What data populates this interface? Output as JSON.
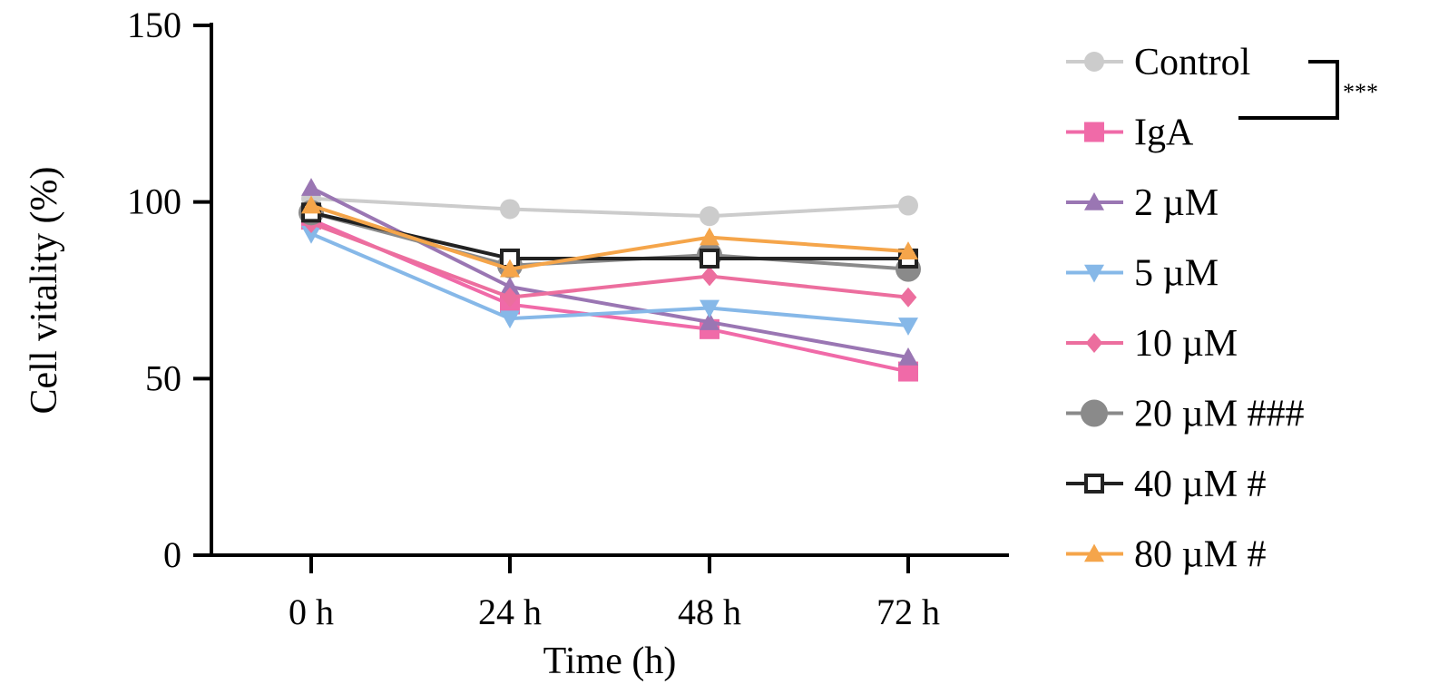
{
  "chart_data": {
    "type": "line",
    "xlabel": "Time (h)",
    "ylabel": "Cell vitality (%)",
    "ylim": [
      0,
      150
    ],
    "yticks": [
      0,
      50,
      100,
      150
    ],
    "categories": [
      "0 h",
      "24 h",
      "48 h",
      "72 h"
    ],
    "grid": false,
    "legend_position": "right",
    "series": [
      {
        "name": "Control",
        "color": "#cccccc",
        "marker": "circle",
        "values": [
          101,
          98,
          96,
          99
        ]
      },
      {
        "name": "IgA",
        "color": "#f06aa8",
        "marker": "square",
        "values": [
          95,
          71,
          64,
          52
        ]
      },
      {
        "name": "2 µM",
        "color": "#9a76b3",
        "marker": "triangle-up",
        "values": [
          104,
          76,
          66,
          56
        ]
      },
      {
        "name": "5 µM",
        "color": "#86b8e8",
        "marker": "triangle-down",
        "values": [
          91,
          67,
          70,
          65
        ]
      },
      {
        "name": "10 µM",
        "color": "#ec6e9e",
        "marker": "diamond",
        "values": [
          94,
          73,
          79,
          73
        ]
      },
      {
        "name": "20 µM ###",
        "color": "#8a8a8a",
        "marker": "circle",
        "values": [
          97,
          82,
          85,
          81
        ]
      },
      {
        "name": "40 µM #",
        "color": "#222222",
        "marker": "square-open",
        "values": [
          97,
          84,
          84,
          84
        ]
      },
      {
        "name": "80 µM #",
        "color": "#f5a54a",
        "marker": "triangle-up",
        "values": [
          99,
          81,
          90,
          86
        ]
      }
    ],
    "annotations": [
      {
        "text": "***",
        "between": [
          "Control",
          "IgA"
        ]
      }
    ]
  }
}
